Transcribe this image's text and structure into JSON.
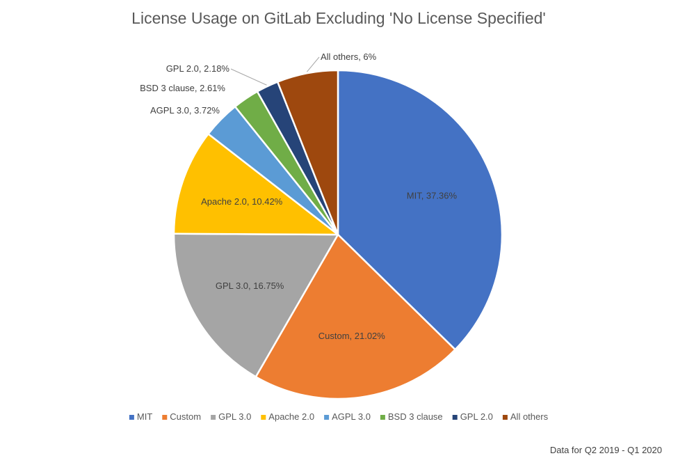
{
  "chart_data": {
    "type": "pie",
    "title": "License Usage on GitLab Excluding 'No License Specified'",
    "footnote": "Data for Q2 2019 - Q1 2020",
    "legend_position": "bottom",
    "slices": [
      {
        "name": "MIT",
        "value": 37.36,
        "label": "MIT, 37.36%",
        "color": "#4472C4",
        "label_color": "#404040"
      },
      {
        "name": "Custom",
        "value": 21.02,
        "label": "Custom, 21.02%",
        "color": "#ED7D31",
        "label_color": "#404040"
      },
      {
        "name": "GPL 3.0",
        "value": 16.75,
        "label": "GPL 3.0, 16.75%",
        "color": "#A5A5A5",
        "label_color": "#404040"
      },
      {
        "name": "Apache 2.0",
        "value": 10.42,
        "label": "Apache 2.0, 10.42%",
        "color": "#FFC000",
        "label_color": "#404040"
      },
      {
        "name": "AGPL 3.0",
        "value": 3.72,
        "label": "AGPL 3.0, 3.72%",
        "color": "#5B9BD5",
        "label_color": "#404040"
      },
      {
        "name": "BSD 3 clause",
        "value": 2.61,
        "label": "BSD 3 clause, 2.61%",
        "color": "#70AD47",
        "label_color": "#404040"
      },
      {
        "name": "GPL 2.0",
        "value": 2.18,
        "label": "GPL 2.0, 2.18%",
        "color": "#264478",
        "label_color": "#404040"
      },
      {
        "name": "All others",
        "value": 6,
        "label": "All others, 6%",
        "color": "#9E480E",
        "label_color": "#404040"
      }
    ]
  }
}
